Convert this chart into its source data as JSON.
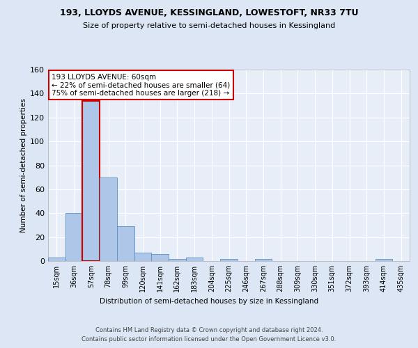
{
  "title1": "193, LLOYDS AVENUE, KESSINGLAND, LOWESTOFT, NR33 7TU",
  "title2": "Size of property relative to semi-detached houses in Kessingland",
  "xlabel": "Distribution of semi-detached houses by size in Kessingland",
  "ylabel": "Number of semi-detached properties",
  "footer": "Contains HM Land Registry data © Crown copyright and database right 2024.\nContains public sector information licensed under the Open Government Licence v3.0.",
  "bin_labels": [
    "15sqm",
    "36sqm",
    "57sqm",
    "78sqm",
    "99sqm",
    "120sqm",
    "141sqm",
    "162sqm",
    "183sqm",
    "204sqm",
    "225sqm",
    "246sqm",
    "267sqm",
    "288sqm",
    "309sqm",
    "330sqm",
    "351sqm",
    "372sqm",
    "393sqm",
    "414sqm",
    "435sqm"
  ],
  "bar_heights": [
    3,
    40,
    134,
    70,
    29,
    7,
    6,
    2,
    3,
    0,
    2,
    0,
    2,
    0,
    0,
    0,
    0,
    0,
    0,
    2,
    0
  ],
  "bar_color": "#aec6e8",
  "bar_edge_color": "#5a8fc2",
  "highlight_bar_index": 2,
  "highlight_bar_edge_color": "#cc0000",
  "vline_color": "#cc0000",
  "annotation_text": "193 LLOYDS AVENUE: 60sqm\n← 22% of semi-detached houses are smaller (64)\n75% of semi-detached houses are larger (218) →",
  "annotation_box_color": "#ffffff",
  "annotation_box_edge_color": "#cc0000",
  "ylim": [
    0,
    160
  ],
  "yticks": [
    0,
    20,
    40,
    60,
    80,
    100,
    120,
    140,
    160
  ],
  "background_color": "#dce6f5",
  "plot_background_color": "#e8eef8"
}
